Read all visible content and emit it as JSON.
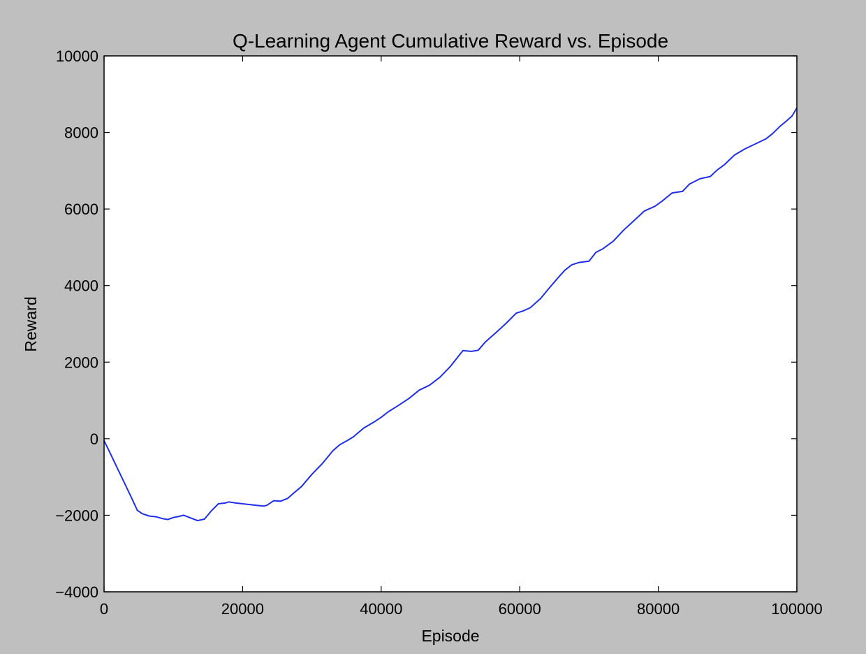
{
  "chart_data": {
    "type": "line",
    "title": "Q-Learning Agent Cumulative Reward vs. Episode",
    "xlabel": "Episode",
    "ylabel": "Reward",
    "xlim": [
      0,
      100000
    ],
    "ylim": [
      -4000,
      10000
    ],
    "x_ticks": [
      0,
      20000,
      40000,
      60000,
      80000,
      100000
    ],
    "x_tick_labels": [
      "0",
      "20000",
      "40000",
      "60000",
      "80000",
      "100000"
    ],
    "y_ticks": [
      -4000,
      -2000,
      0,
      2000,
      4000,
      6000,
      8000,
      10000
    ],
    "y_tick_labels": [
      "−4000",
      "−2000",
      "0",
      "2000",
      "4000",
      "6000",
      "8000",
      "10000"
    ],
    "grid": false,
    "legend": "none",
    "series": [
      {
        "color": "#1f2fe8",
        "x": [
          0,
          1000,
          2000,
          3000,
          4000,
          4800,
          5500,
          6500,
          7500,
          8500,
          9200,
          10000,
          10800,
          11500,
          12500,
          13500,
          14500,
          15500,
          16500,
          17500,
          18000,
          19000,
          20000,
          21000,
          22000,
          23000,
          23500,
          24500,
          25500,
          26500,
          27500,
          28500,
          30000,
          31500,
          33000,
          34000,
          35000,
          36000,
          37500,
          39000,
          40000,
          41000,
          42500,
          44000,
          45500,
          47000,
          48500,
          50000,
          51000,
          51800,
          53000,
          54000,
          55000,
          56500,
          58000,
          59500,
          60500,
          61500,
          63000,
          64000,
          65500,
          66500,
          67500,
          68500,
          70000,
          71000,
          72000,
          73500,
          75000,
          76500,
          78000,
          79500,
          80500,
          82000,
          83500,
          84500,
          86000,
          87500,
          88500,
          89500,
          91000,
          92500,
          94000,
          95500,
          96500,
          97500,
          98500,
          99300,
          100000
        ],
        "y": [
          -50,
          -420,
          -800,
          -1180,
          -1560,
          -1870,
          -1960,
          -2020,
          -2040,
          -2090,
          -2110,
          -2060,
          -2030,
          -2000,
          -2070,
          -2140,
          -2100,
          -1880,
          -1700,
          -1680,
          -1650,
          -1680,
          -1700,
          -1720,
          -1740,
          -1760,
          -1740,
          -1620,
          -1630,
          -1560,
          -1400,
          -1250,
          -930,
          -650,
          -320,
          -160,
          -60,
          50,
          280,
          440,
          560,
          700,
          870,
          1050,
          1270,
          1400,
          1610,
          1890,
          2120,
          2300,
          2280,
          2310,
          2520,
          2760,
          3010,
          3280,
          3340,
          3420,
          3660,
          3880,
          4200,
          4400,
          4540,
          4600,
          4640,
          4870,
          4960,
          5160,
          5450,
          5700,
          5950,
          6070,
          6200,
          6420,
          6460,
          6650,
          6790,
          6850,
          7020,
          7150,
          7410,
          7570,
          7700,
          7830,
          7970,
          8150,
          8300,
          8430,
          8640
        ]
      }
    ]
  }
}
